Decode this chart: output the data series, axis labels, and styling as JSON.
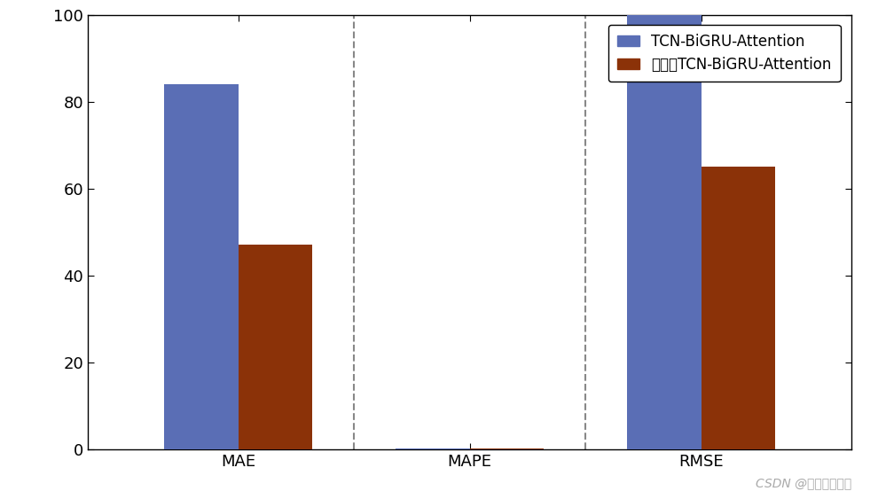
{
  "categories": [
    "MAE",
    "MAPE",
    "RMSE"
  ],
  "values_blue": [
    84,
    0.08,
    100
  ],
  "values_orange": [
    47,
    0.08,
    65
  ],
  "blue_color": "#5a6eb5",
  "orange_color": "#8b3208",
  "ylim": [
    0,
    100
  ],
  "yticks": [
    0,
    20,
    40,
    60,
    80,
    100
  ],
  "legend_labels": [
    "TCN-BiGRU-Attention",
    "优化后TCN-BiGRU-Attention"
  ],
  "watermark": "CSDN @机器学习之心",
  "bar_width": 0.32,
  "background_color": "#ffffff",
  "tick_fontsize": 13,
  "legend_fontsize": 12,
  "vline_positions": [
    0.5,
    1.5
  ],
  "xlim": [
    -0.65,
    2.65
  ]
}
